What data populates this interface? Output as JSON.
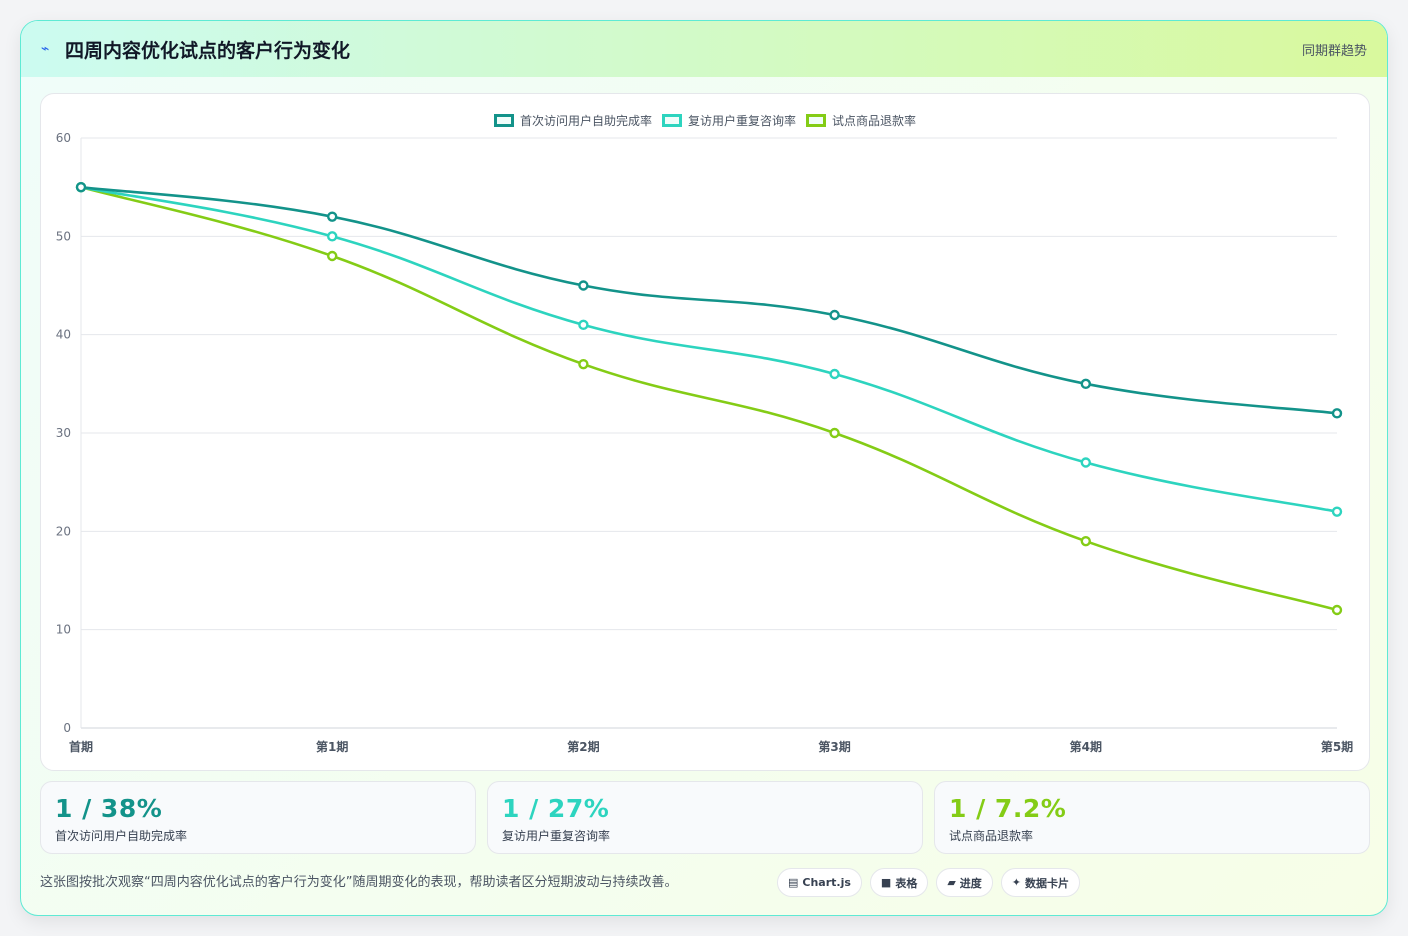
{
  "header": {
    "title": "四周内容优化试点的客户行为变化",
    "tag": "同期群趋势",
    "icon": "lightning-icon"
  },
  "colors": {
    "series1": "#13938a",
    "series2": "#2dd4bf",
    "series3": "#84cc16"
  },
  "chart_data": {
    "type": "line",
    "categories": [
      "首期",
      "第1期",
      "第2期",
      "第3期",
      "第4期",
      "第5期"
    ],
    "series": [
      {
        "name": "首次访问用户自助完成率",
        "values": [
          55,
          52,
          45,
          42,
          35,
          32
        ]
      },
      {
        "name": "复访用户重复咨询率",
        "values": [
          55,
          50,
          41,
          36,
          27,
          22
        ]
      },
      {
        "name": "试点商品退款率",
        "values": [
          55,
          48,
          37,
          30,
          19,
          12
        ]
      }
    ],
    "ylim": [
      0,
      60
    ],
    "yticks": [
      "0",
      "10",
      "20",
      "30",
      "40",
      "50",
      "60"
    ],
    "grid": true,
    "legend": "top-center",
    "smooth": true
  },
  "stats": [
    {
      "value": "1 / 38%",
      "label": "首次访问用户自助完成率"
    },
    {
      "value": "1 / 27%",
      "label": "复访用户重复咨询率"
    },
    {
      "value": "1 / 7.2%",
      "label": "试点商品退款率"
    }
  ],
  "footer": {
    "description": "这张图按批次观察“四周内容优化试点的客户行为变化”随周期变化的表现，帮助读者区分短期波动与持续改善。",
    "chips": [
      {
        "icon": "chart-icon",
        "glyph": "▤",
        "label": "Chart.js"
      },
      {
        "icon": "table-icon",
        "glyph": "■",
        "label": "表格"
      },
      {
        "icon": "progress-icon",
        "glyph": "▰",
        "label": "进度"
      },
      {
        "icon": "sparkle-icon",
        "glyph": "✦",
        "label": "数据卡片"
      }
    ]
  }
}
